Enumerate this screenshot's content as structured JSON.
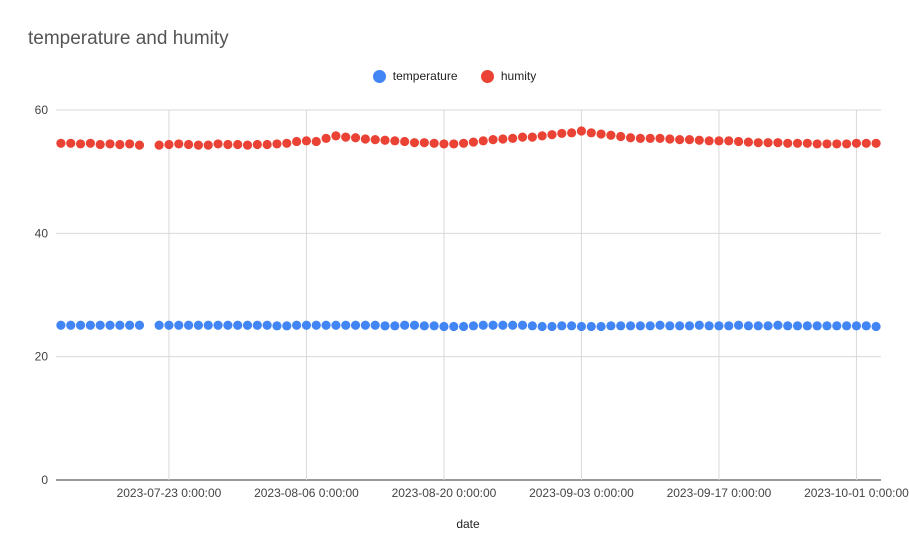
{
  "chart_data": {
    "type": "scatter",
    "title": "temperature and humity",
    "xlabel": "date",
    "ylabel": "",
    "ylim": [
      0,
      60
    ],
    "yticks": [
      0,
      20,
      40,
      60
    ],
    "x_ticks": [
      "2023-07-23 0:00:00",
      "2023-08-06 0:00:00",
      "2023-08-20 0:00:00",
      "2023-09-03 0:00:00",
      "2023-09-17 0:00:00",
      "2023-10-01 0:00:00"
    ],
    "xlim": [
      "2023-07-12",
      "2023-10-03"
    ],
    "grid": true,
    "legend": "top-center",
    "series": [
      {
        "name": "temperature",
        "color": "#4285F4",
        "x": [
          "2023-07-12",
          "2023-07-13",
          "2023-07-14",
          "2023-07-15",
          "2023-07-16",
          "2023-07-17",
          "2023-07-18",
          "2023-07-19",
          "2023-07-20",
          "2023-07-22",
          "2023-07-23",
          "2023-07-24",
          "2023-07-25",
          "2023-07-26",
          "2023-07-27",
          "2023-07-28",
          "2023-07-29",
          "2023-07-30",
          "2023-07-31",
          "2023-08-01",
          "2023-08-02",
          "2023-08-03",
          "2023-08-04",
          "2023-08-05",
          "2023-08-06",
          "2023-08-07",
          "2023-08-08",
          "2023-08-09",
          "2023-08-10",
          "2023-08-11",
          "2023-08-12",
          "2023-08-13",
          "2023-08-14",
          "2023-08-15",
          "2023-08-16",
          "2023-08-17",
          "2023-08-18",
          "2023-08-19",
          "2023-08-20",
          "2023-08-21",
          "2023-08-22",
          "2023-08-23",
          "2023-08-24",
          "2023-08-25",
          "2023-08-26",
          "2023-08-27",
          "2023-08-28",
          "2023-08-29",
          "2023-08-30",
          "2023-08-31",
          "2023-09-01",
          "2023-09-02",
          "2023-09-03",
          "2023-09-04",
          "2023-09-05",
          "2023-09-06",
          "2023-09-07",
          "2023-09-08",
          "2023-09-09",
          "2023-09-10",
          "2023-09-11",
          "2023-09-12",
          "2023-09-13",
          "2023-09-14",
          "2023-09-15",
          "2023-09-16",
          "2023-09-17",
          "2023-09-18",
          "2023-09-19",
          "2023-09-20",
          "2023-09-21",
          "2023-09-22",
          "2023-09-23",
          "2023-09-24",
          "2023-09-25",
          "2023-09-26",
          "2023-09-27",
          "2023-09-28",
          "2023-09-29",
          "2023-09-30",
          "2023-10-01",
          "2023-10-02",
          "2023-10-03"
        ],
        "y": [
          25.1,
          25.1,
          25.1,
          25.1,
          25.1,
          25.1,
          25.1,
          25.1,
          25.1,
          25.1,
          25.1,
          25.1,
          25.1,
          25.1,
          25.1,
          25.1,
          25.1,
          25.1,
          25.1,
          25.1,
          25.1,
          25.0,
          25.0,
          25.1,
          25.1,
          25.1,
          25.1,
          25.1,
          25.1,
          25.1,
          25.1,
          25.1,
          25.0,
          25.0,
          25.1,
          25.1,
          25.0,
          25.0,
          24.9,
          24.9,
          24.9,
          25.0,
          25.1,
          25.1,
          25.1,
          25.1,
          25.1,
          25.0,
          24.9,
          24.9,
          25.0,
          25.0,
          24.9,
          24.9,
          24.9,
          25.0,
          25.0,
          25.0,
          25.0,
          25.0,
          25.1,
          25.0,
          25.0,
          25.0,
          25.1,
          25.0,
          25.0,
          25.0,
          25.1,
          25.0,
          25.0,
          25.0,
          25.1,
          25.0,
          25.0,
          25.0,
          25.0,
          25.0,
          25.0,
          25.0,
          25.0,
          25.0,
          24.9
        ]
      },
      {
        "name": "humity",
        "color": "#EA4335",
        "x": [
          "2023-07-12",
          "2023-07-13",
          "2023-07-14",
          "2023-07-15",
          "2023-07-16",
          "2023-07-17",
          "2023-07-18",
          "2023-07-19",
          "2023-07-20",
          "2023-07-22",
          "2023-07-23",
          "2023-07-24",
          "2023-07-25",
          "2023-07-26",
          "2023-07-27",
          "2023-07-28",
          "2023-07-29",
          "2023-07-30",
          "2023-07-31",
          "2023-08-01",
          "2023-08-02",
          "2023-08-03",
          "2023-08-04",
          "2023-08-05",
          "2023-08-06",
          "2023-08-07",
          "2023-08-08",
          "2023-08-09",
          "2023-08-10",
          "2023-08-11",
          "2023-08-12",
          "2023-08-13",
          "2023-08-14",
          "2023-08-15",
          "2023-08-16",
          "2023-08-17",
          "2023-08-18",
          "2023-08-19",
          "2023-08-20",
          "2023-08-21",
          "2023-08-22",
          "2023-08-23",
          "2023-08-24",
          "2023-08-25",
          "2023-08-26",
          "2023-08-27",
          "2023-08-28",
          "2023-08-29",
          "2023-08-30",
          "2023-08-31",
          "2023-09-01",
          "2023-09-02",
          "2023-09-03",
          "2023-09-04",
          "2023-09-05",
          "2023-09-06",
          "2023-09-07",
          "2023-09-08",
          "2023-09-09",
          "2023-09-10",
          "2023-09-11",
          "2023-09-12",
          "2023-09-13",
          "2023-09-14",
          "2023-09-15",
          "2023-09-16",
          "2023-09-17",
          "2023-09-18",
          "2023-09-19",
          "2023-09-20",
          "2023-09-21",
          "2023-09-22",
          "2023-09-23",
          "2023-09-24",
          "2023-09-25",
          "2023-09-26",
          "2023-09-27",
          "2023-09-28",
          "2023-09-29",
          "2023-09-30",
          "2023-10-01",
          "2023-10-02",
          "2023-10-03"
        ],
        "y": [
          54.6,
          54.6,
          54.5,
          54.6,
          54.4,
          54.5,
          54.4,
          54.5,
          54.3,
          54.3,
          54.4,
          54.5,
          54.4,
          54.3,
          54.3,
          54.5,
          54.4,
          54.4,
          54.3,
          54.4,
          54.4,
          54.5,
          54.6,
          54.9,
          55.0,
          54.9,
          55.4,
          55.8,
          55.6,
          55.5,
          55.3,
          55.2,
          55.1,
          55.0,
          54.9,
          54.7,
          54.7,
          54.6,
          54.5,
          54.5,
          54.6,
          54.8,
          55.0,
          55.2,
          55.3,
          55.4,
          55.6,
          55.6,
          55.8,
          56.0,
          56.2,
          56.3,
          56.6,
          56.3,
          56.1,
          55.9,
          55.7,
          55.5,
          55.4,
          55.4,
          55.4,
          55.3,
          55.2,
          55.2,
          55.1,
          55.0,
          55.0,
          55.0,
          54.9,
          54.8,
          54.7,
          54.7,
          54.7,
          54.6,
          54.6,
          54.6,
          54.5,
          54.5,
          54.5,
          54.5,
          54.6,
          54.6,
          54.6
        ]
      }
    ]
  }
}
